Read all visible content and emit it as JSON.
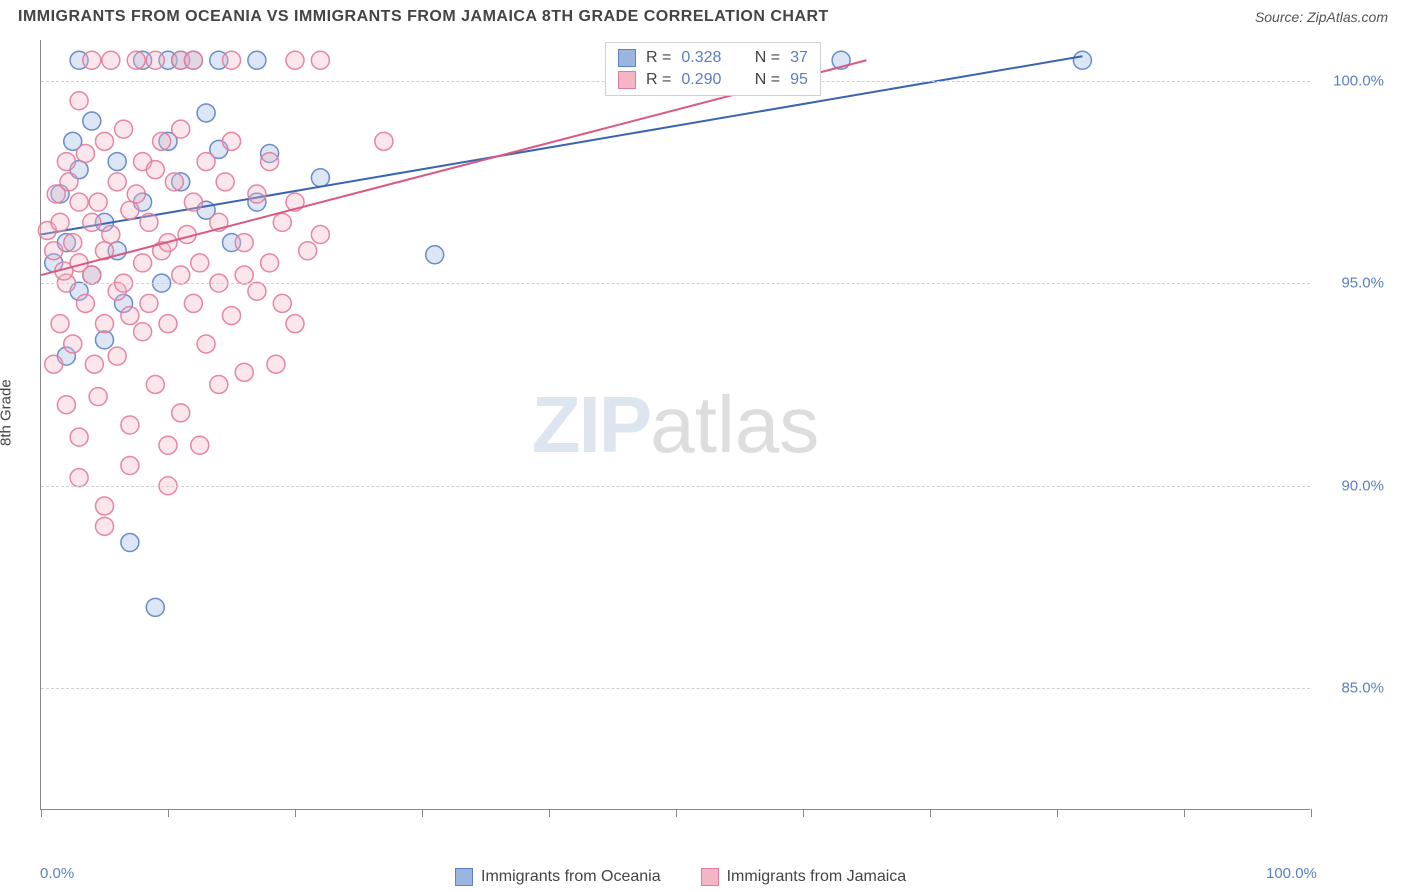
{
  "title": "IMMIGRANTS FROM OCEANIA VS IMMIGRANTS FROM JAMAICA 8TH GRADE CORRELATION CHART",
  "source_label": "Source:",
  "source_name": "ZipAtlas.com",
  "ylabel": "8th Grade",
  "watermark_1": "ZIP",
  "watermark_2": "atlas",
  "chart": {
    "type": "scatter",
    "xlim": [
      0,
      100
    ],
    "ylim": [
      82,
      101
    ],
    "x_ticks": [
      0,
      10,
      20,
      30,
      40,
      50,
      60,
      70,
      80,
      90,
      100
    ],
    "x_tick_labels": {
      "0": "0.0%",
      "100": "100.0%"
    },
    "y_gridlines": [
      85,
      90,
      95,
      100
    ],
    "y_tick_labels": {
      "85": "85.0%",
      "90": "90.0%",
      "95": "95.0%",
      "100": "100.0%"
    },
    "background_color": "#ffffff",
    "grid_color": "#d0d0d0",
    "axis_color": "#888888",
    "marker_radius": 9,
    "marker_fill_opacity": 0.35,
    "marker_stroke_opacity": 0.9,
    "marker_stroke_width": 1.5,
    "line_stroke_width": 2,
    "series": [
      {
        "key": "oceania",
        "label": "Immigrants from Oceania",
        "color_fill": "#9ab6e0",
        "color_stroke": "#5a82c4",
        "line_color": "#3a66b0",
        "r_value": "0.328",
        "n_value": "37",
        "regression": {
          "x1": 0,
          "y1": 96.2,
          "x2": 82,
          "y2": 100.6
        },
        "points": [
          [
            1,
            95.5
          ],
          [
            1.5,
            97.2
          ],
          [
            2,
            96.0
          ],
          [
            2.5,
            98.5
          ],
          [
            3,
            94.8
          ],
          [
            3,
            100.5
          ],
          [
            4,
            99.0
          ],
          [
            5,
            96.5
          ],
          [
            5,
            93.6
          ],
          [
            6,
            98.0
          ],
          [
            6.5,
            94.5
          ],
          [
            7,
            88.6
          ],
          [
            8,
            100.5
          ],
          [
            9,
            87.0
          ],
          [
            9.5,
            95.0
          ],
          [
            10,
            100.5
          ],
          [
            11,
            97.5
          ],
          [
            11,
            100.5
          ],
          [
            12,
            100.5
          ],
          [
            13,
            99.2
          ],
          [
            14,
            98.3
          ],
          [
            14,
            100.5
          ],
          [
            15,
            96.0
          ],
          [
            17,
            97.0
          ],
          [
            17,
            100.5
          ],
          [
            18,
            98.2
          ],
          [
            22,
            97.6
          ],
          [
            31,
            95.7
          ],
          [
            63,
            100.5
          ],
          [
            82,
            100.5
          ],
          [
            3,
            97.8
          ],
          [
            4,
            95.2
          ],
          [
            2,
            93.2
          ],
          [
            6,
            95.8
          ],
          [
            8,
            97.0
          ],
          [
            10,
            98.5
          ],
          [
            13,
            96.8
          ]
        ]
      },
      {
        "key": "jamaica",
        "label": "Immigrants from Jamaica",
        "color_fill": "#f2b6c6",
        "color_stroke": "#e47a9a",
        "line_color": "#d85a82",
        "r_value": "0.290",
        "n_value": "95",
        "regression": {
          "x1": 0,
          "y1": 95.2,
          "x2": 65,
          "y2": 100.5
        },
        "points": [
          [
            0.5,
            96.3
          ],
          [
            1,
            95.8
          ],
          [
            1,
            93.0
          ],
          [
            1.2,
            97.2
          ],
          [
            1.5,
            94.0
          ],
          [
            1.5,
            96.5
          ],
          [
            2,
            98.0
          ],
          [
            2,
            95.0
          ],
          [
            2,
            92.0
          ],
          [
            2.2,
            97.5
          ],
          [
            2.5,
            96.0
          ],
          [
            2.5,
            93.5
          ],
          [
            3,
            99.5
          ],
          [
            3,
            97.0
          ],
          [
            3,
            95.5
          ],
          [
            3,
            90.2
          ],
          [
            3.5,
            94.5
          ],
          [
            3.5,
            98.2
          ],
          [
            4,
            96.5
          ],
          [
            4,
            95.2
          ],
          [
            4,
            100.5
          ],
          [
            4.2,
            93.0
          ],
          [
            4.5,
            97.0
          ],
          [
            4.5,
            92.2
          ],
          [
            5,
            98.5
          ],
          [
            5,
            95.8
          ],
          [
            5,
            94.0
          ],
          [
            5,
            89.5
          ],
          [
            5.5,
            96.2
          ],
          [
            5.5,
            100.5
          ],
          [
            6,
            97.5
          ],
          [
            6,
            94.8
          ],
          [
            6,
            93.2
          ],
          [
            6.5,
            98.8
          ],
          [
            6.5,
            95.0
          ],
          [
            7,
            96.8
          ],
          [
            7,
            94.2
          ],
          [
            7,
            91.5
          ],
          [
            7.5,
            97.2
          ],
          [
            7.5,
            100.5
          ],
          [
            8,
            95.5
          ],
          [
            8,
            98.0
          ],
          [
            8,
            93.8
          ],
          [
            8.5,
            96.5
          ],
          [
            8.5,
            94.5
          ],
          [
            9,
            97.8
          ],
          [
            9,
            92.5
          ],
          [
            9,
            100.5
          ],
          [
            9.5,
            95.8
          ],
          [
            9.5,
            98.5
          ],
          [
            10,
            96.0
          ],
          [
            10,
            94.0
          ],
          [
            10,
            91.0
          ],
          [
            10.5,
            97.5
          ],
          [
            11,
            95.2
          ],
          [
            11,
            98.8
          ],
          [
            11,
            100.5
          ],
          [
            11.5,
            96.2
          ],
          [
            12,
            94.5
          ],
          [
            12,
            97.0
          ],
          [
            12,
            100.5
          ],
          [
            12.5,
            95.5
          ],
          [
            12.5,
            91.0
          ],
          [
            13,
            98.0
          ],
          [
            13,
            93.5
          ],
          [
            14,
            96.5
          ],
          [
            14,
            95.0
          ],
          [
            14.5,
            97.5
          ],
          [
            15,
            94.2
          ],
          [
            15,
            98.5
          ],
          [
            15,
            100.5
          ],
          [
            16,
            96.0
          ],
          [
            16,
            95.2
          ],
          [
            16,
            92.8
          ],
          [
            17,
            97.2
          ],
          [
            17,
            94.8
          ],
          [
            18,
            98.0
          ],
          [
            18,
            95.5
          ],
          [
            18.5,
            93.0
          ],
          [
            19,
            96.5
          ],
          [
            19,
            94.5
          ],
          [
            20,
            97.0
          ],
          [
            20,
            94.0
          ],
          [
            20,
            100.5
          ],
          [
            21,
            95.8
          ],
          [
            22,
            96.2
          ],
          [
            22,
            100.5
          ],
          [
            27,
            98.5
          ],
          [
            5,
            89.0
          ],
          [
            11,
            91.8
          ],
          [
            3,
            91.2
          ],
          [
            7,
            90.5
          ],
          [
            14,
            92.5
          ],
          [
            10,
            90.0
          ],
          [
            1.8,
            95.3
          ]
        ]
      }
    ]
  },
  "legend_stat_prefix_r": "R =",
  "legend_stat_prefix_n": "N ="
}
